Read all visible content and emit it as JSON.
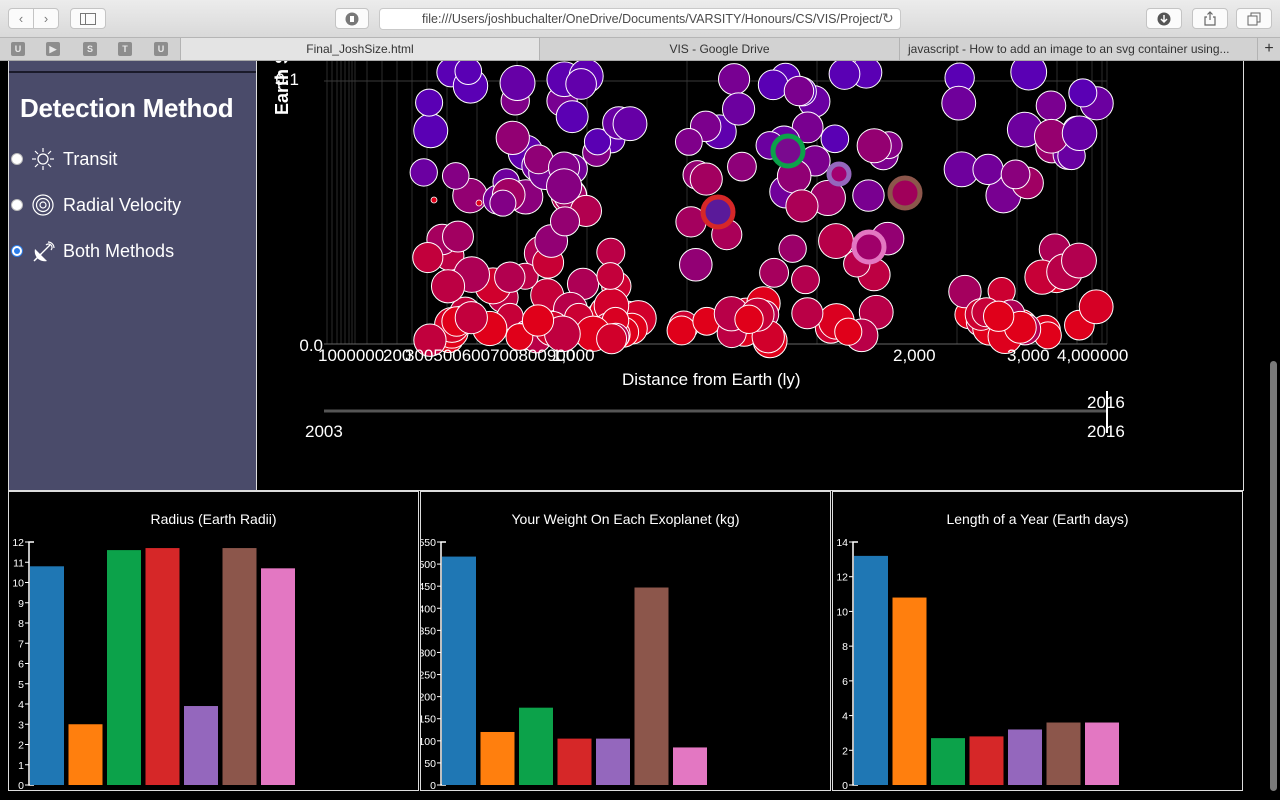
{
  "browser": {
    "url": "file:///Users/joshbuchalter/OneDrive/Documents/VARSITY/Honours/CS/VIS/Project/",
    "bookmarks": [
      "U",
      "",
      "S",
      "T",
      "U"
    ],
    "tabs": [
      {
        "title": "Final_JoshSize.html",
        "active": true
      },
      {
        "title": "VIS - Google Drive",
        "active": false
      },
      {
        "title": "javascript - How to add an image to an svg container using...",
        "active": false
      }
    ],
    "new_tab": "+"
  },
  "sidebar": {
    "title": "Detection Method",
    "options": [
      {
        "label": "Transit",
        "icon": "sun-icon",
        "selected": false
      },
      {
        "label": "Radial Velocity",
        "icon": "concentric-circles-icon",
        "selected": false
      },
      {
        "label": "Both Methods",
        "icon": "satellite-dish-icon",
        "selected": true
      }
    ]
  },
  "scatter": {
    "y_axis_label": "Earth S",
    "x_axis_label": "Distance from Earth (ly)",
    "y_ticks": [
      "0.1",
      "0.0"
    ],
    "x_tick_left": "1000000",
    "x_tick_200": "200",
    "x_tick_cluster": "300500600700800900",
    "x_tick_1000": "1,000",
    "x_tick_2000": "2,000",
    "x_tick_3000": "3,000",
    "x_tick_4000": "4,000",
    "x_tick_right": "000",
    "slider_top_label": "2016",
    "slider_start": "2003",
    "slider_end": "2016",
    "colors": {
      "transit": "#5a00b4",
      "radial": "#e0001a"
    },
    "highlights": [
      {
        "name": "highlight-green",
        "color": "#0ca24a"
      },
      {
        "name": "highlight-red",
        "color": "#d62728"
      },
      {
        "name": "highlight-purple",
        "color": "#9467bd"
      },
      {
        "name": "highlight-brown",
        "color": "#8c564b"
      },
      {
        "name": "highlight-pink",
        "color": "#e377c2"
      }
    ]
  },
  "chart_data": [
    {
      "type": "bar",
      "title": "Radius (Earth Radii)",
      "ylim": [
        0,
        12
      ],
      "y_ticks": [
        "0",
        "1",
        "2",
        "3",
        "4",
        "5",
        "6",
        "7",
        "8",
        "9",
        "10",
        "11",
        "12"
      ],
      "values": [
        10.8,
        3.0,
        11.6,
        11.7,
        3.9,
        11.7,
        10.7
      ],
      "colors": [
        "#1f77b4",
        "#ff7f0e",
        "#0ca24a",
        "#d62728",
        "#9467bd",
        "#8c564b",
        "#e377c2"
      ]
    },
    {
      "type": "bar",
      "title": "Your Weight On Each Exoplanet (kg)",
      "ylim": [
        0,
        550
      ],
      "y_ticks": [
        "0",
        "50",
        "100",
        "150",
        "200",
        "250",
        "300",
        "350",
        "400",
        "450",
        "500",
        "550"
      ],
      "values": [
        517,
        120,
        175,
        105,
        105,
        447,
        85
      ],
      "colors": [
        "#1f77b4",
        "#ff7f0e",
        "#0ca24a",
        "#d62728",
        "#9467bd",
        "#8c564b",
        "#e377c2"
      ]
    },
    {
      "type": "bar",
      "title": "Length of a Year (Earth days)",
      "ylim": [
        0,
        14
      ],
      "y_ticks": [
        "0",
        "2",
        "4",
        "6",
        "8",
        "10",
        "12",
        "14"
      ],
      "values": [
        13.2,
        10.8,
        2.7,
        2.8,
        3.2,
        3.6,
        3.6
      ],
      "colors": [
        "#1f77b4",
        "#ff7f0e",
        "#0ca24a",
        "#d62728",
        "#9467bd",
        "#8c564b",
        "#e377c2"
      ]
    }
  ]
}
